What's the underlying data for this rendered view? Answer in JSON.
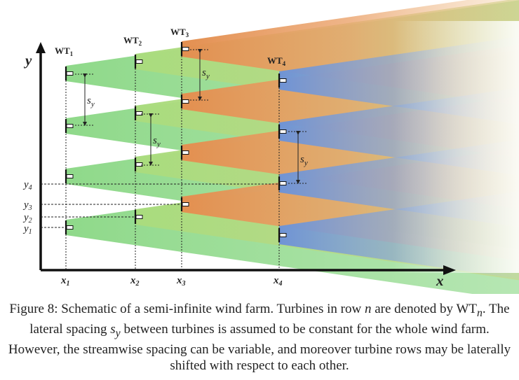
{
  "figure": {
    "axis_y_label": "y",
    "axis_x_label": "x",
    "turbine_rows": [
      {
        "label": "WT",
        "sub": "1"
      },
      {
        "label": "WT",
        "sub": "2"
      },
      {
        "label": "WT",
        "sub": "3"
      },
      {
        "label": "WT",
        "sub": "4"
      }
    ],
    "x_ticks": [
      {
        "base": "x",
        "sub": "1"
      },
      {
        "base": "x",
        "sub": "2"
      },
      {
        "base": "x",
        "sub": "3"
      },
      {
        "base": "x",
        "sub": "4"
      }
    ],
    "y_ticks": [
      {
        "base": "y",
        "sub": "4"
      },
      {
        "base": "y",
        "sub": "3"
      },
      {
        "base": "y",
        "sub": "2"
      },
      {
        "base": "y",
        "sub": "1"
      }
    ],
    "spacing_label": {
      "base": "s",
      "sub": "y"
    },
    "wake_colors": {
      "row1": "#8fd98a",
      "row2": "#a8d57a",
      "row3": "#e69a5a",
      "row4": "#7f9fd8"
    }
  },
  "caption": {
    "prefix": "Figure 8: Schematic of a semi-infinite wind farm. Turbines in row ",
    "n_var": "n",
    "mid1": " are denoted by WT",
    "sub_n": "n",
    "mid2": ". The lateral spacing ",
    "s_var": "s",
    "s_sub": "y",
    "suffix": " between turbines is assumed to be constant for the whole wind farm. However, the streamwise spacing can be variable, and moreover turbine rows may be laterally shifted with respect to each other."
  }
}
